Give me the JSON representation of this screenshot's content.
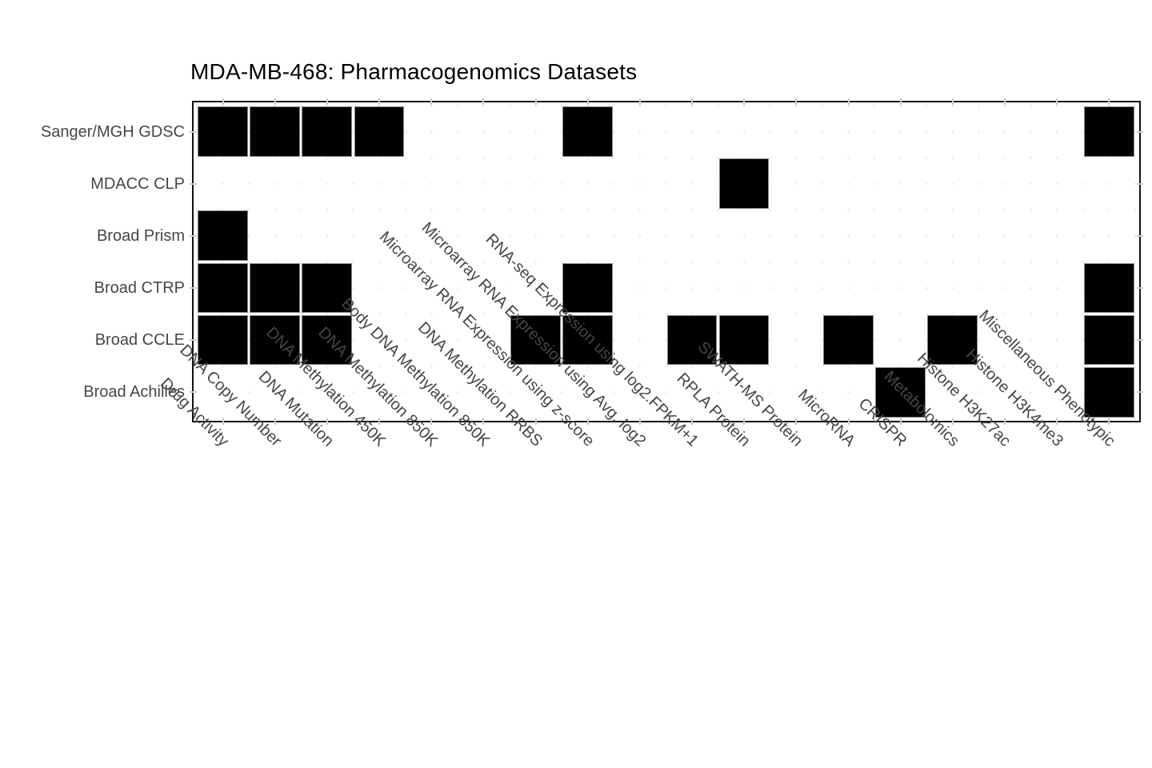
{
  "chart_data": {
    "type": "heatmap",
    "title": "MDA-MB-468: Pharmacogenomics Datasets",
    "rows": [
      "Sanger/MGH GDSC",
      "MDACC CLP",
      "Broad Prism",
      "Broad CTRP",
      "Broad CCLE",
      "Broad Achilles"
    ],
    "columns": [
      "Drug Activity",
      "DNA Copy Number",
      "DNA Mutation",
      "DNA Methylation 450K",
      "DNA Methylation 850K",
      "Body DNA Methylation 850K",
      "DNA Methylation RRBS",
      "Microarray RNA Expression using z-score",
      "Microarray RNA Expression using Avg. log2",
      "RNA-seq Expression using log2.FPKM+1",
      "RPLA Protein",
      "SWATH-MS Protein",
      "MicroRNA",
      "CRISPR",
      "Metabolomics",
      "Histone H3K27ac",
      "Histone H3K4me3",
      "Miscellaneous Phenotypic"
    ],
    "matrix": [
      [
        1,
        1,
        1,
        1,
        0,
        0,
        0,
        1,
        0,
        0,
        0,
        0,
        0,
        0,
        0,
        0,
        0,
        1
      ],
      [
        0,
        0,
        0,
        0,
        0,
        0,
        0,
        0,
        0,
        0,
        1,
        0,
        0,
        0,
        0,
        0,
        0,
        0
      ],
      [
        1,
        0,
        0,
        0,
        0,
        0,
        0,
        0,
        0,
        0,
        0,
        0,
        0,
        0,
        0,
        0,
        0,
        0
      ],
      [
        1,
        1,
        1,
        0,
        0,
        0,
        0,
        1,
        0,
        0,
        0,
        0,
        0,
        0,
        0,
        0,
        0,
        1
      ],
      [
        1,
        1,
        1,
        0,
        0,
        0,
        1,
        1,
        0,
        1,
        1,
        0,
        1,
        0,
        1,
        0,
        0,
        1
      ],
      [
        0,
        0,
        0,
        0,
        0,
        0,
        0,
        0,
        0,
        0,
        0,
        0,
        0,
        1,
        0,
        0,
        0,
        1
      ]
    ],
    "filled_value": 1,
    "filled_color": "#000000",
    "empty_color": "#ffffff",
    "legend_position": "none",
    "grid": "faint minor ticks"
  },
  "colors": {
    "axis_text": "#464646",
    "title_text": "#000000",
    "panel_border": "#121212",
    "axis_tick": "#cbcbcb",
    "background": "#ffffff"
  }
}
